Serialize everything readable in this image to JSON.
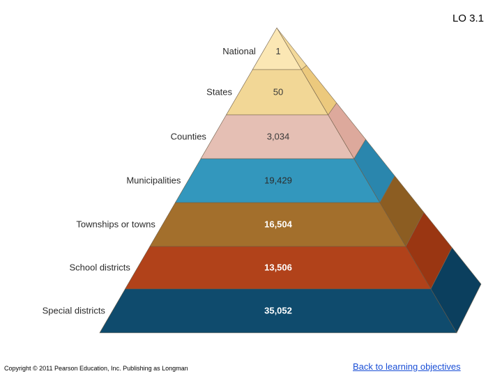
{
  "header": {
    "lo": "LO 3.1"
  },
  "pyramid": {
    "levels": [
      {
        "label": "National",
        "count": "1",
        "front": "#fbe7b4",
        "side": "#f3d99a",
        "text": "#3a3a3a"
      },
      {
        "label": "States",
        "count": "50",
        "front": "#f2d796",
        "side": "#ecc97d",
        "text": "#3a3a3a"
      },
      {
        "label": "Counties",
        "count": "3,034",
        "front": "#e5bfb4",
        "side": "#dda99c",
        "text": "#3a3a3a"
      },
      {
        "label": "Municipalities",
        "count": "19,429",
        "front": "#3397bd",
        "side": "#2a86ad",
        "text": "#2b2b2b"
      },
      {
        "label": "Townships or towns",
        "count": "16,504",
        "front": "#a36f2c",
        "side": "#8c5d22",
        "text": "#ffffff"
      },
      {
        "label": "School districts",
        "count": "13,506",
        "front": "#b1421a",
        "side": "#9a3612",
        "text": "#ffffff"
      },
      {
        "label": "Special districts",
        "count": "35,052",
        "front": "#0f4b6d",
        "side": "#0b3f5e",
        "text": "#ffffff"
      }
    ]
  },
  "footer": {
    "copyright": "Copyright © 2011 Pearson Education, Inc. Publishing as Longman",
    "back_link": "Back to learning objectives"
  }
}
